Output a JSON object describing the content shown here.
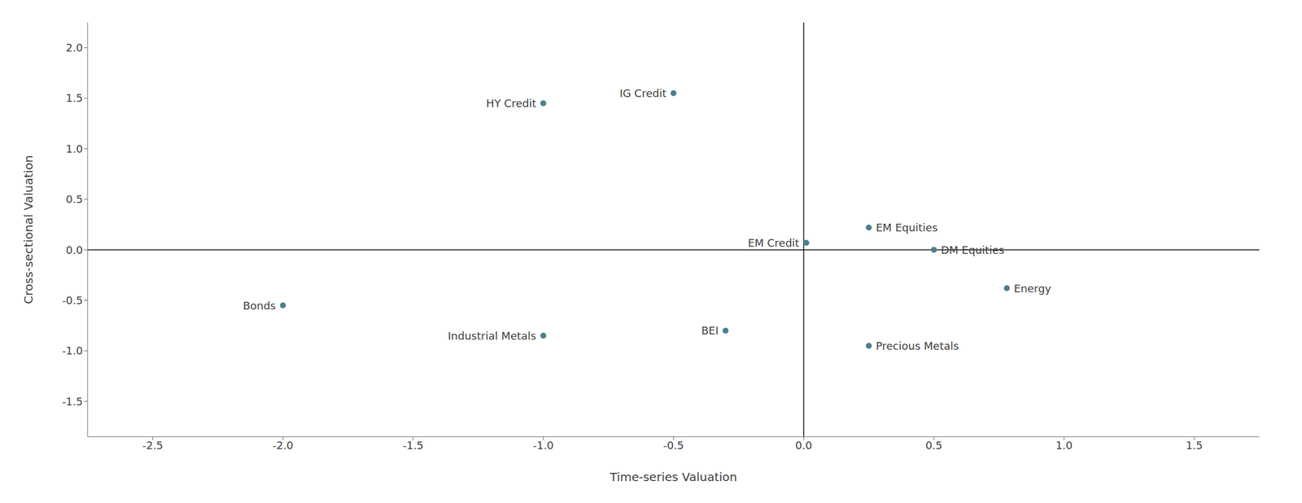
{
  "chart_data": {
    "type": "scatter",
    "xlabel": "Time-series Valuation",
    "ylabel": "Cross-sectional Valuation",
    "labels": [
      "HY Credit",
      "IG Credit",
      "Bonds",
      "Industrial Metals",
      "BEI",
      "EM Credit",
      "EM Equities",
      "DM Equities",
      "Energy",
      "Precious Metals"
    ],
    "x": [
      -1.0,
      -0.5,
      -2.0,
      -1.0,
      -0.3,
      0.01,
      0.25,
      0.5,
      0.78,
      0.25
    ],
    "values": [
      1.45,
      1.55,
      -0.55,
      -0.85,
      -0.8,
      0.07,
      0.22,
      0.0,
      -0.38,
      -0.95
    ],
    "color": "#4a7f8e",
    "xlim": [
      -2.75,
      1.75
    ],
    "ylim": [
      -1.85,
      2.25
    ],
    "xticks": [
      -2.5,
      {
        "value": -2.0,
        "label": "-2.0"
      },
      -1.5,
      {
        "value": -1.0,
        "label": "-1.0"
      },
      -0.5,
      {
        "value": 0.0,
        "label": "0.0"
      },
      0.5,
      {
        "value": 1.0,
        "label": "1.0"
      },
      1.5
    ],
    "yticks": [
      -1.5,
      {
        "value": -1.0,
        "label": "-1.0"
      },
      -0.5,
      {
        "value": 0.0,
        "label": "0.0"
      },
      0.5,
      {
        "value": 1.0,
        "label": "1.0"
      },
      1.5,
      {
        "value": 2.0,
        "label": "2.0"
      }
    ],
    "grid": false
  }
}
